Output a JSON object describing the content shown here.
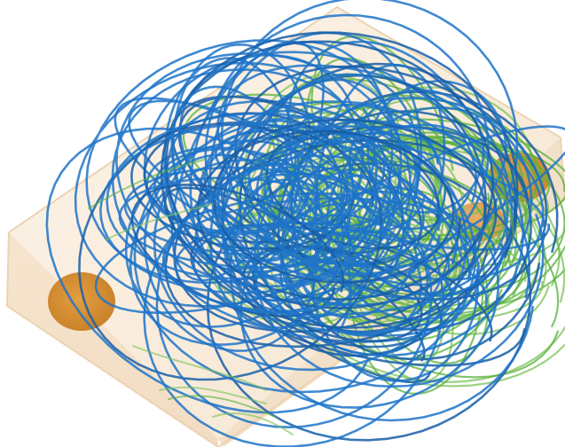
{
  "scene": {
    "background": "#ffffff",
    "box_fill": "#f6e4cc",
    "box_edge": "#e9cda8",
    "inlet_color": "#d28a2a",
    "stream_colors": {
      "blue": "#1f74c9",
      "blue_dark": "#175ea8",
      "green": "#5ab03c",
      "green_light": "#7cc25a"
    }
  }
}
